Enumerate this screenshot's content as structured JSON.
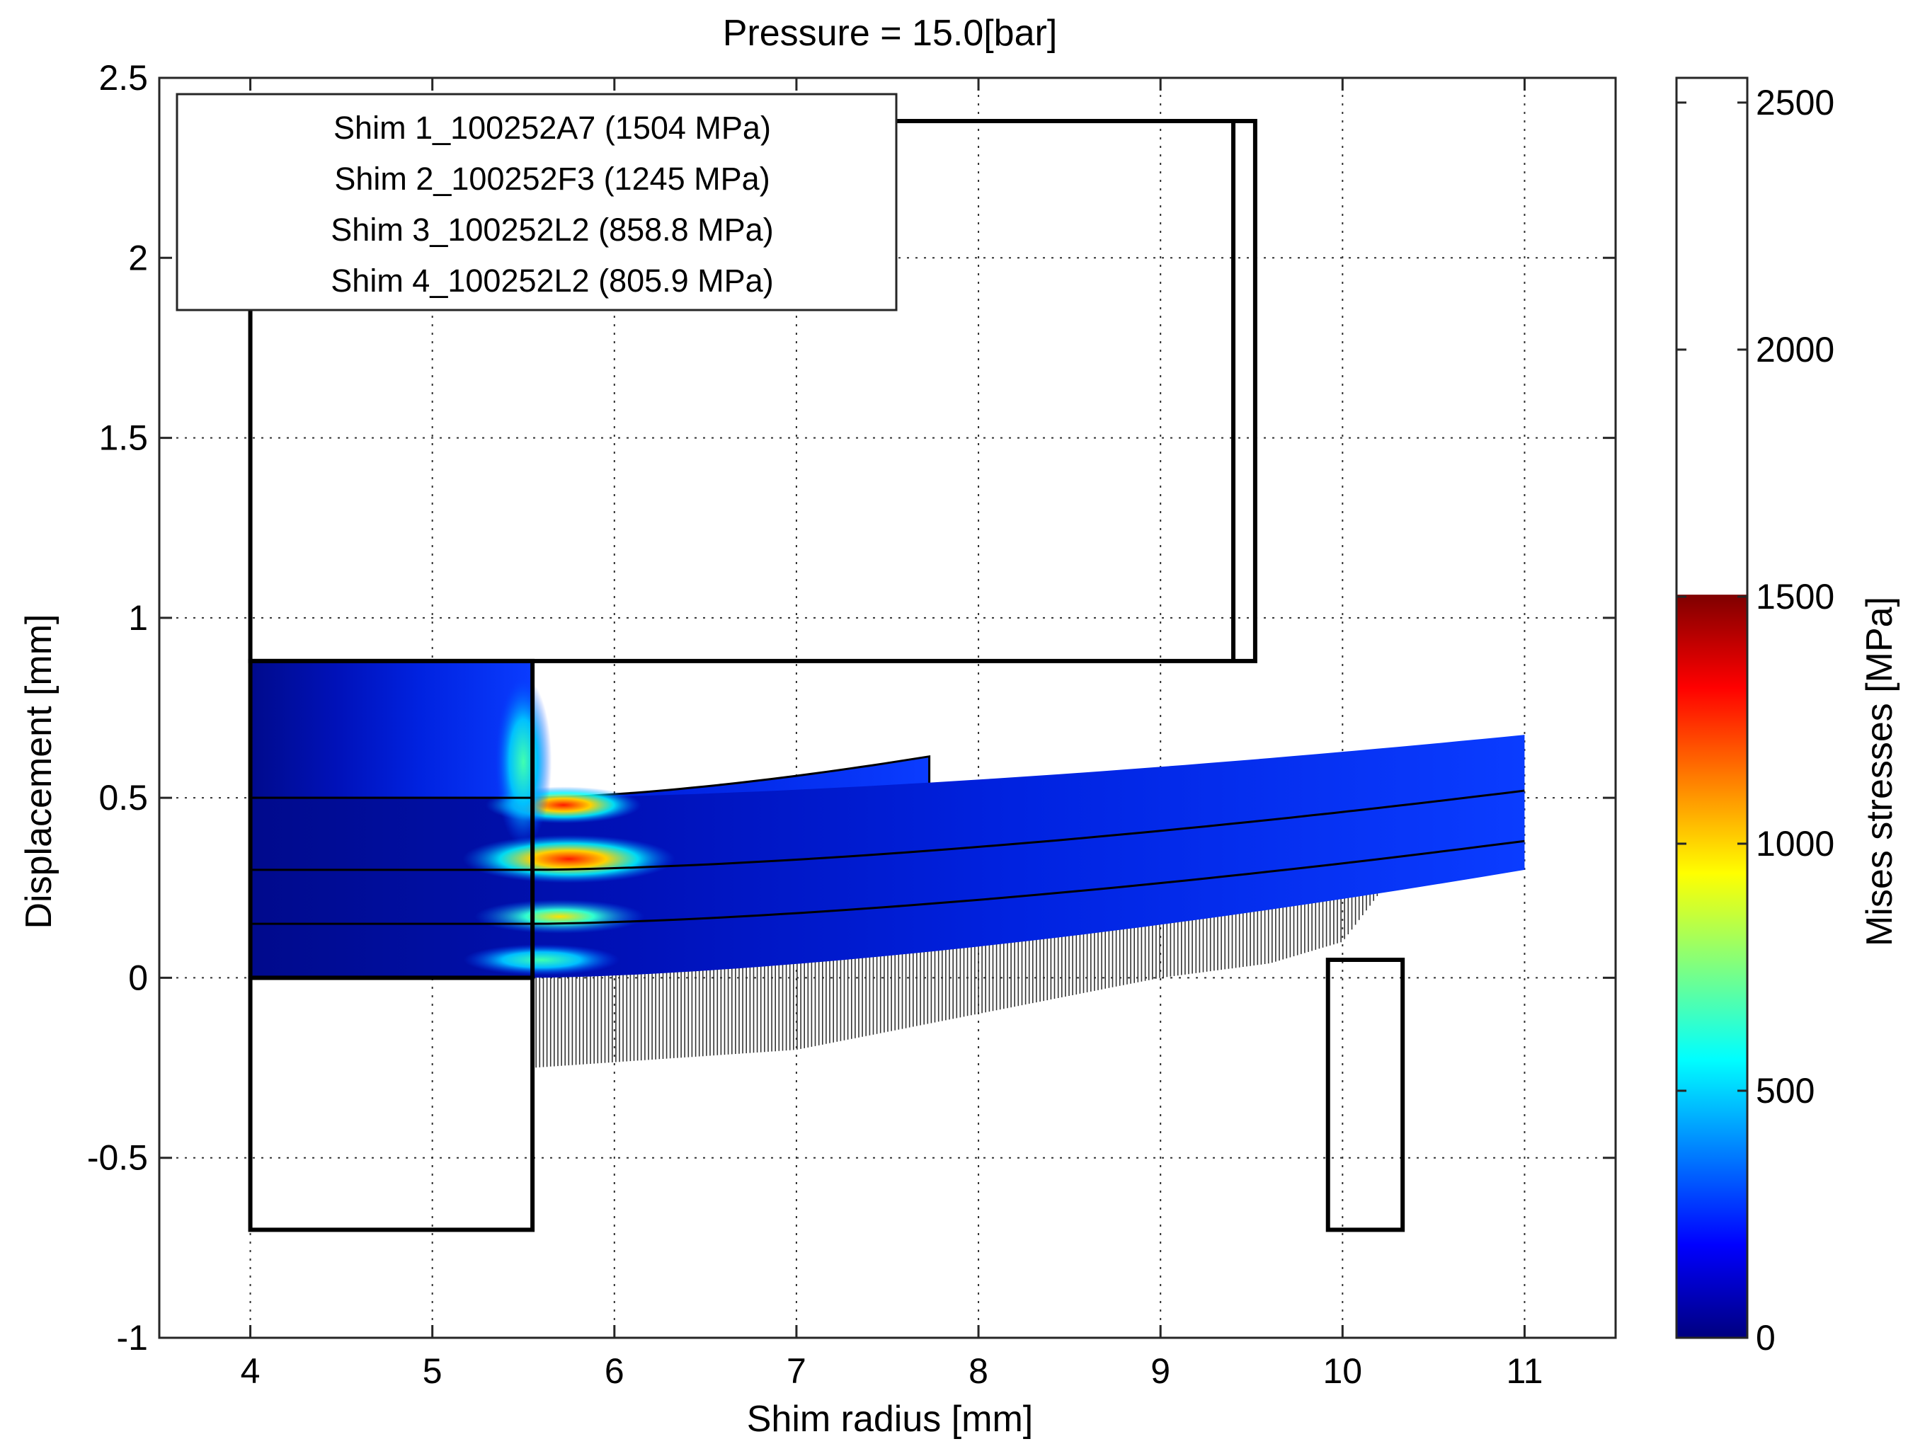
{
  "chart_data": {
    "type": "heatmap",
    "title": "Pressure = 15.0[bar]",
    "xlabel": "Shim radius [mm]",
    "ylabel": "Displacement [mm]",
    "xlim": [
      3.5,
      11.5
    ],
    "ylim": [
      -1,
      2.5
    ],
    "xticks": [
      "4",
      "5",
      "6",
      "7",
      "8",
      "9",
      "10",
      "11"
    ],
    "xtick_values": [
      4,
      5,
      6,
      7,
      8,
      9,
      10,
      11
    ],
    "yticks": [
      "-1",
      "-0.5",
      "0",
      "0.5",
      "1",
      "1.5",
      "2",
      "2.5"
    ],
    "ytick_values": [
      -1,
      -0.5,
      0,
      0.5,
      1,
      1.5,
      2,
      2.5
    ],
    "grid": true,
    "legend_position": "top-left",
    "legend": [
      "Shim 1_100252A7 (1504 MPa)",
      "Shim 2_100252F3 (1245 MPa)",
      "Shim 3_100252L2 (858.8 MPa)",
      "Shim 4_100252L2 (805.9 MPa)"
    ],
    "colorbar": {
      "label": "Mises stresses [MPa]",
      "range": [
        0,
        2550
      ],
      "colored_max": 1504,
      "ticks": [
        "0",
        "500",
        "1000",
        "1500",
        "2000",
        "2500"
      ],
      "tick_values": [
        0,
        500,
        1000,
        1500,
        2000,
        2500
      ],
      "colormap": "jet",
      "colors": [
        "#00007f",
        "#0000ff",
        "#00ffff",
        "#ffff00",
        "#ff0000",
        "#7f0000"
      ]
    },
    "shims": [
      {
        "name": "Shim 1_100252A7",
        "max_stress": 1504,
        "outer_radius": 7.73,
        "top_y_at_outer_radius": 0.615,
        "bottom_y_at_outer_radius": 0.41
      },
      {
        "name": "Shim 2_100252F3",
        "max_stress": 1245,
        "outer_radius": 11.0,
        "top_y_at_outer_radius": 0.675,
        "bottom_y_at_outer_radius": 0.52
      },
      {
        "name": "Shim 3_100252L2",
        "max_stress": 858.8,
        "outer_radius": 11.0,
        "top_y_at_outer_radius": 0.52,
        "bottom_y_at_outer_radius": 0.38
      },
      {
        "name": "Shim 4_100252L2",
        "max_stress": 805.9,
        "outer_radius": 11.0,
        "top_y_at_outer_radius": 0.4,
        "bottom_y_at_outer_radius": 0.3
      }
    ],
    "clamp_top": {
      "x": [
        4.0,
        5.55
      ],
      "y": [
        0.0,
        0.88
      ]
    },
    "stack_interfaces_at_clamp": [
      0.0,
      0.15,
      0.3,
      0.5,
      0.88
    ],
    "upper_stop": {
      "x": [
        4.0,
        9.52
      ],
      "y": [
        0.88,
        2.38
      ],
      "inner_edge_x": 9.4
    },
    "lower_clamp": {
      "x": [
        4.0,
        5.55
      ],
      "y": [
        -0.7,
        0.0
      ]
    },
    "outer_support": {
      "x": [
        9.92,
        10.33
      ],
      "y": [
        -0.7,
        0.05
      ]
    },
    "hatch_region": {
      "x_start": 5.55,
      "x_end": 10.33,
      "upper_boundary": [
        [
          5.55,
          0.0
        ],
        [
          7.0,
          0.05
        ],
        [
          8.0,
          0.11
        ],
        [
          9.0,
          0.2
        ],
        [
          9.6,
          0.25
        ],
        [
          10.0,
          0.28
        ],
        [
          10.33,
          0.32
        ]
      ],
      "lower_boundary": [
        [
          5.55,
          -0.25
        ],
        [
          7.0,
          -0.2
        ],
        [
          8.0,
          -0.1
        ],
        [
          9.0,
          0.0
        ],
        [
          9.6,
          0.04
        ],
        [
          10.0,
          0.1
        ],
        [
          10.33,
          0.32
        ]
      ]
    }
  }
}
